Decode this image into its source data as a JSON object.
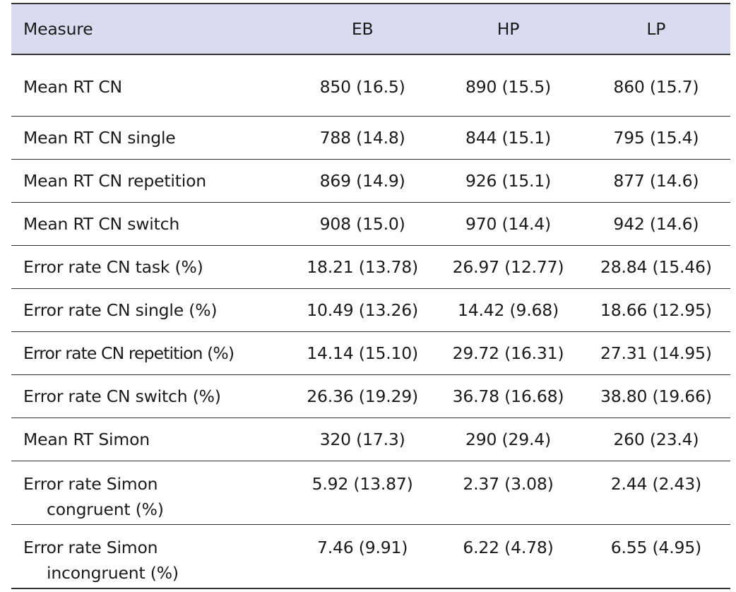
{
  "table": {
    "headers": [
      "Measure",
      "EB",
      "HP",
      "LP"
    ],
    "rows": [
      {
        "measure": "Mean RT CN",
        "eb": "850 (16.5)",
        "hp": "890 (15.5)",
        "lp": "860 (15.7)"
      },
      {
        "measure": "Mean RT CN single",
        "eb": "788 (14.8)",
        "hp": "844 (15.1)",
        "lp": "795 (15.4)"
      },
      {
        "measure": "Mean RT CN repetition",
        "eb": "869 (14.9)",
        "hp": "926 (15.1)",
        "lp": "877 (14.6)"
      },
      {
        "measure": "Mean RT CN switch",
        "eb": "908 (15.0)",
        "hp": "970 (14.4)",
        "lp": "942 (14.6)"
      },
      {
        "measure": "Error rate CN task (%)",
        "eb": "18.21 (13.78)",
        "hp": "26.97 (12.77)",
        "lp": "28.84 (15.46)"
      },
      {
        "measure": "Error rate CN single (%)",
        "eb": "10.49 (13.26)",
        "hp": "14.42 (9.68)",
        "lp": "18.66 (12.95)"
      },
      {
        "measure": "Error rate CN repetition (%)",
        "eb": "14.14 (15.10)",
        "hp": "29.72 (16.31)",
        "lp": "27.31 (14.95)"
      },
      {
        "measure": "Error rate CN switch (%)",
        "eb": "26.36 (19.29)",
        "hp": "36.78 (16.68)",
        "lp": "38.80 (19.66)"
      },
      {
        "measure": "Mean RT Simon",
        "eb": "320 (17.3)",
        "hp": "290 (29.4)",
        "lp": "260 (23.4)"
      },
      {
        "measure_line1": "Error rate Simon",
        "measure_line2": "congruent (%)",
        "eb": "5.92 (13.87)",
        "hp": "2.37 (3.08)",
        "lp": "2.44 (2.43)"
      },
      {
        "measure_line1": "Error rate Simon",
        "measure_line2": "incongruent (%)",
        "eb": "7.46 (9.91)",
        "hp": "6.22 (4.78)",
        "lp": "6.55 (4.95)"
      }
    ]
  }
}
